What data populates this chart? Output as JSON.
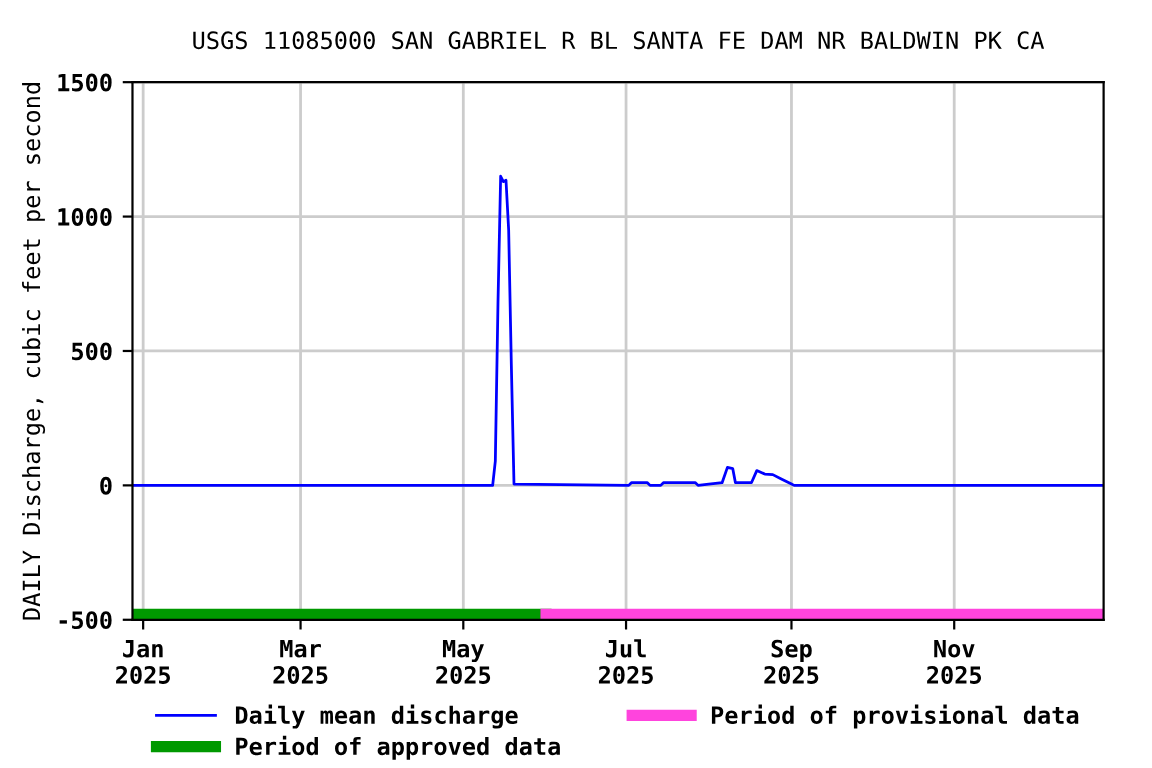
{
  "chart_data": {
    "type": "line",
    "title": "USGS 11085000 SAN GABRIEL R BL SANTA FE DAM NR BALDWIN PK CA",
    "ylabel": "DAILY Discharge, cubic feet per second",
    "series": [
      {
        "name": "Daily mean discharge",
        "color": "#0000ff",
        "x": [
          "2024-12-28",
          "2025-05-12",
          "2025-05-13",
          "2025-05-14",
          "2025-05-15",
          "2025-05-16",
          "2025-05-17",
          "2025-05-18",
          "2025-05-19",
          "2025-05-20",
          "2025-07-02",
          "2025-07-03",
          "2025-07-09",
          "2025-07-10",
          "2025-07-14",
          "2025-07-15",
          "2025-07-27",
          "2025-07-28",
          "2025-08-01",
          "2025-08-06",
          "2025-08-08",
          "2025-08-10",
          "2025-08-11",
          "2025-08-12",
          "2025-08-17",
          "2025-08-19",
          "2025-08-22",
          "2025-08-25",
          "2025-08-28",
          "2025-09-01",
          "2025-09-02",
          "2025-12-27"
        ],
        "values": [
          0,
          0,
          90,
          680,
          1150,
          1130,
          1135,
          950,
          450,
          5,
          0,
          10,
          10,
          0,
          0,
          10,
          10,
          0,
          5,
          10,
          67,
          62,
          10,
          10,
          10,
          55,
          42,
          40,
          25,
          5,
          0,
          0
        ]
      },
      {
        "name": "Period of approved data",
        "color": "#009900",
        "x": [
          "2024-12-28",
          "2025-06-01"
        ],
        "values": [
          -480,
          -480
        ]
      },
      {
        "name": "Period of provisional data",
        "color": "#ff44dd",
        "x": [
          "2025-06-01",
          "2025-12-27"
        ],
        "values": [
          -480,
          -480
        ]
      }
    ],
    "xlim": [
      "2024-12-28",
      "2025-12-27"
    ],
    "xticks": [
      {
        "value": "2025-01-01",
        "label": "Jan\n2025"
      },
      {
        "value": "2025-03-01",
        "label": "Mar\n2025"
      },
      {
        "value": "2025-05-01",
        "label": "May\n2025"
      },
      {
        "value": "2025-07-01",
        "label": "Jul\n2025"
      },
      {
        "value": "2025-09-01",
        "label": "Sep\n2025"
      },
      {
        "value": "2025-11-01",
        "label": "Nov\n2025"
      }
    ],
    "ylim": [
      -500,
      1500
    ],
    "yticks": [
      -500,
      0,
      500,
      1000,
      1500
    ],
    "grid": true,
    "legend": "bottom"
  }
}
